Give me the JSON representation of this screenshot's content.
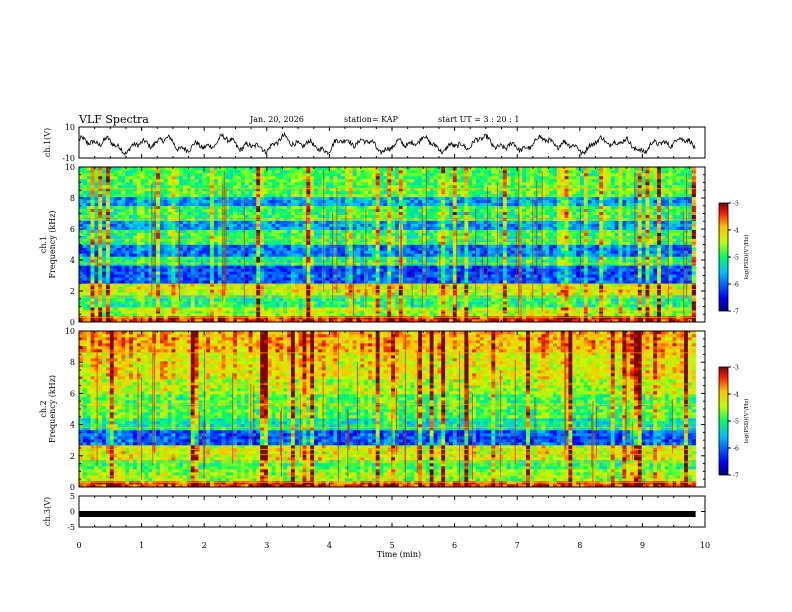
{
  "header": {
    "title": "VLF Spectra",
    "date": "Jan. 20, 2026",
    "station": "station= KAP",
    "start": "start  UT =   3  : 20 : 1"
  },
  "chart_data": [
    {
      "type": "line",
      "name": "ch1-waveform",
      "ylabel": "ch.1(V)",
      "ylim": [
        -10,
        10
      ],
      "ytick_labels": [
        "10",
        "-10"
      ],
      "x_extent_min": [
        0,
        9.85
      ],
      "trace_range": [
        -10,
        10
      ]
    },
    {
      "type": "heatmap",
      "name": "ch1-spectrogram",
      "ylabel": "ch.1\nFrequency (kHz)",
      "ylim": [
        0,
        10
      ],
      "yticks": [
        0,
        2,
        4,
        6,
        8,
        10
      ],
      "ytick_labels": [
        "0",
        "2",
        "4",
        "6",
        "8",
        "10"
      ],
      "colorbar": {
        "label": "log(PSD)(V²/Hz)",
        "range": [
          -7,
          -3
        ],
        "ticks": [
          -3,
          -4,
          -5,
          -6,
          -7
        ],
        "tick_labels": [
          "-3",
          "-4",
          "-5",
          "-6",
          "-7"
        ]
      },
      "bands": [
        {
          "from_khz": 0,
          "to_khz": 0.4,
          "level": -3.5
        },
        {
          "from_khz": 0.4,
          "to_khz": 1.0,
          "level": -4.6
        },
        {
          "from_khz": 1.0,
          "to_khz": 1.8,
          "level": -5.1
        },
        {
          "from_khz": 1.8,
          "to_khz": 2.5,
          "level": -4.4
        },
        {
          "from_khz": 2.5,
          "to_khz": 3.6,
          "level": -6.2
        },
        {
          "from_khz": 3.6,
          "to_khz": 4.2,
          "level": -5.2
        },
        {
          "from_khz": 4.2,
          "to_khz": 5.0,
          "level": -6.0
        },
        {
          "from_khz": 5.0,
          "to_khz": 6.0,
          "level": -5.0
        },
        {
          "from_khz": 6.0,
          "to_khz": 6.5,
          "level": -5.8
        },
        {
          "from_khz": 6.5,
          "to_khz": 7.5,
          "level": -5.0
        },
        {
          "from_khz": 7.5,
          "to_khz": 8.0,
          "level": -5.8
        },
        {
          "from_khz": 8.0,
          "to_khz": 10.0,
          "level": -4.9
        }
      ]
    },
    {
      "type": "heatmap",
      "name": "ch2-spectrogram",
      "ylabel": "ch.2\nFrequency (kHz)",
      "ylim": [
        0,
        10
      ],
      "yticks": [
        0,
        2,
        4,
        6,
        8,
        10
      ],
      "ytick_labels": [
        "0",
        "2",
        "4",
        "6",
        "8",
        "10"
      ],
      "colorbar": {
        "label": "log(PSD)(V²/Hz)",
        "range": [
          -7,
          -3
        ],
        "ticks": [
          -3,
          -4,
          -5,
          -6,
          -7
        ],
        "tick_labels": [
          "-3",
          "-4",
          "-5",
          "-6",
          "-7"
        ]
      },
      "bands": [
        {
          "from_khz": 0,
          "to_khz": 0.4,
          "level": -3.6
        },
        {
          "from_khz": 0.4,
          "to_khz": 1.2,
          "level": -4.7
        },
        {
          "from_khz": 1.2,
          "to_khz": 1.8,
          "level": -5.0
        },
        {
          "from_khz": 1.8,
          "to_khz": 2.6,
          "level": -4.4
        },
        {
          "from_khz": 2.6,
          "to_khz": 3.6,
          "level": -6.2
        },
        {
          "from_khz": 3.6,
          "to_khz": 4.4,
          "level": -5.3
        },
        {
          "from_khz": 4.4,
          "to_khz": 6.0,
          "level": -4.9
        },
        {
          "from_khz": 6.0,
          "to_khz": 7.0,
          "level": -4.6
        },
        {
          "from_khz": 7.0,
          "to_khz": 8.6,
          "level": -4.3
        },
        {
          "from_khz": 8.6,
          "to_khz": 10.0,
          "level": -4.0
        }
      ]
    },
    {
      "type": "line",
      "name": "ch3-waveform",
      "ylabel": "ch.3(V)",
      "ylim": [
        -5,
        5
      ],
      "ytick_labels": [
        "5",
        "0",
        "-5"
      ],
      "trace_level_v": -0.8,
      "x_extent_min": [
        0,
        9.85
      ]
    }
  ],
  "x_axis": {
    "label": "Time (min)",
    "xlim": [
      0,
      10
    ],
    "ticks": [
      0,
      1,
      2,
      3,
      4,
      5,
      6,
      7,
      8,
      9,
      10
    ],
    "tick_labels": [
      "0",
      "1",
      "2",
      "3",
      "4",
      "5",
      "6",
      "7",
      "8",
      "9",
      "10"
    ]
  }
}
